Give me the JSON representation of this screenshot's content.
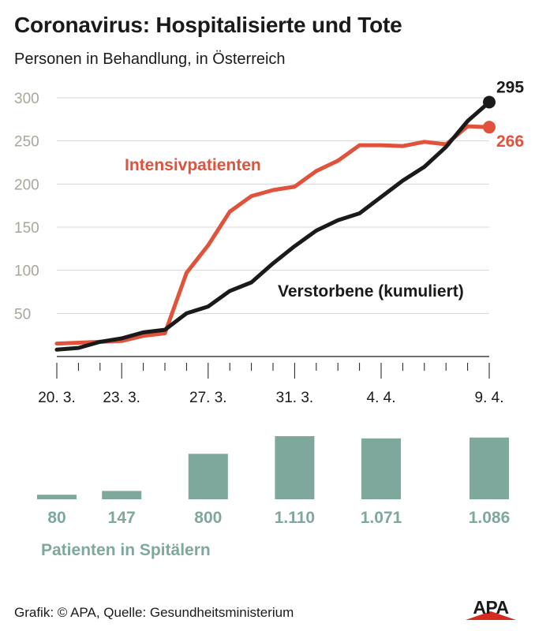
{
  "header": {
    "title": "Coronavirus: Hospitalisierte und Tote",
    "subtitle": "Personen in Behandlung, in Österreich"
  },
  "chart_data": [
    {
      "type": "line",
      "ylim": [
        0,
        300
      ],
      "yticks": [
        50,
        100,
        150,
        200,
        250,
        300
      ],
      "grid": true,
      "x_labels": [
        {
          "index": 0,
          "text": "20. 3."
        },
        {
          "index": 3,
          "text": "23. 3."
        },
        {
          "index": 7,
          "text": "27. 3."
        },
        {
          "index": 11,
          "text": "31. 3."
        },
        {
          "index": 15,
          "text": "4. 4."
        },
        {
          "index": 20,
          "text": "9. 4."
        }
      ],
      "x": [
        "20. 3.",
        "21. 3.",
        "22. 3.",
        "23. 3.",
        "24. 3.",
        "25. 3.",
        "26. 3.",
        "27. 3.",
        "28. 3.",
        "29. 3.",
        "30. 3.",
        "31. 3.",
        "1. 4.",
        "2. 4.",
        "3. 4.",
        "4. 4.",
        "5. 4.",
        "6. 4.",
        "7. 4.",
        "8. 4.",
        "9. 4."
      ],
      "series": [
        {
          "name": "Intensivpatienten",
          "color": "#e0523b",
          "values": [
            15,
            16,
            17,
            18,
            24,
            27,
            97,
            129,
            168,
            186,
            193,
            197,
            215,
            227,
            245,
            245,
            244,
            249,
            246,
            267,
            266
          ],
          "end_label": "266"
        },
        {
          "name": "Verstorbene (kumuliert)",
          "color": "#1a1a1a",
          "values": [
            8,
            10,
            17,
            21,
            28,
            31,
            50,
            58,
            76,
            86,
            108,
            128,
            146,
            158,
            166,
            185,
            204,
            220,
            243,
            273,
            295
          ],
          "end_label": "295"
        }
      ]
    },
    {
      "type": "bar",
      "title": "Patienten in Spitälern",
      "color": "#7fa89d",
      "categories": [
        "20. 3.",
        "23. 3.",
        "27. 3.",
        "31. 3.",
        "4. 4.",
        "9. 4."
      ],
      "values": [
        80,
        147,
        800,
        1110,
        1071,
        1086
      ],
      "value_labels": [
        "80",
        "147",
        "800",
        "1.110",
        "1.071",
        "1.086"
      ]
    }
  ],
  "footer": {
    "credit": "Grafik: © APA, Quelle: Gesundheitsministerium",
    "logo_text": "APA"
  }
}
